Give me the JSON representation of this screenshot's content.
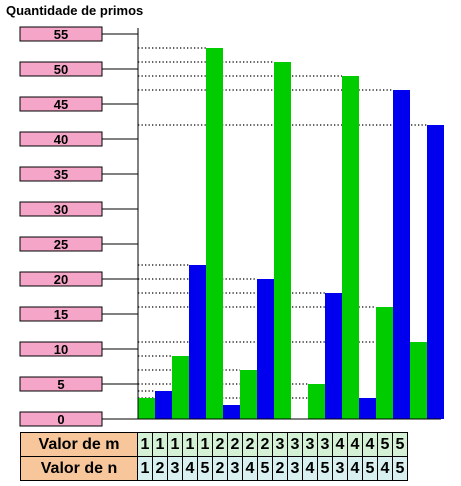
{
  "chart_data": {
    "type": "bar",
    "title": "Quantidade de primos",
    "ylim": [
      0,
      55
    ],
    "yticks": [
      "55",
      "50",
      "45",
      "40",
      "35",
      "30",
      "25",
      "20",
      "15",
      "10",
      "5",
      "0"
    ],
    "series_colors": {
      "green": "#00cc00",
      "blue": "#0000ee"
    },
    "bars": [
      {
        "color": "green",
        "value": 3
      },
      {
        "color": "blue",
        "value": 4
      },
      {
        "color": "green",
        "value": 9
      },
      {
        "color": "blue",
        "value": 22
      },
      {
        "color": "green",
        "value": 53
      },
      {
        "color": "blue",
        "value": 2
      },
      {
        "color": "green",
        "value": 7
      },
      {
        "color": "blue",
        "value": 20
      },
      {
        "color": "green",
        "value": 51
      },
      {
        "color": "blue",
        "value": 0
      },
      {
        "color": "green",
        "value": 5
      },
      {
        "color": "blue",
        "value": 18
      },
      {
        "color": "green",
        "value": 49
      },
      {
        "color": "blue",
        "value": 3
      },
      {
        "color": "green",
        "value": 16
      },
      {
        "color": "blue",
        "value": 47
      },
      {
        "color": "green",
        "value": 11
      },
      {
        "color": "blue",
        "value": 42
      }
    ]
  },
  "table": {
    "m_label": "Valor de m",
    "n_label": "Valor de n",
    "m_values": [
      "1",
      "1",
      "1",
      "1",
      "1",
      "2",
      "2",
      "2",
      "2",
      "3",
      "3",
      "3",
      "3",
      "4",
      "4",
      "4",
      "5",
      "5"
    ],
    "n_values": [
      "1",
      "2",
      "3",
      "4",
      "5",
      "2",
      "3",
      "4",
      "5",
      "2",
      "3",
      "4",
      "5",
      "3",
      "4",
      "5",
      "4",
      "5"
    ]
  }
}
